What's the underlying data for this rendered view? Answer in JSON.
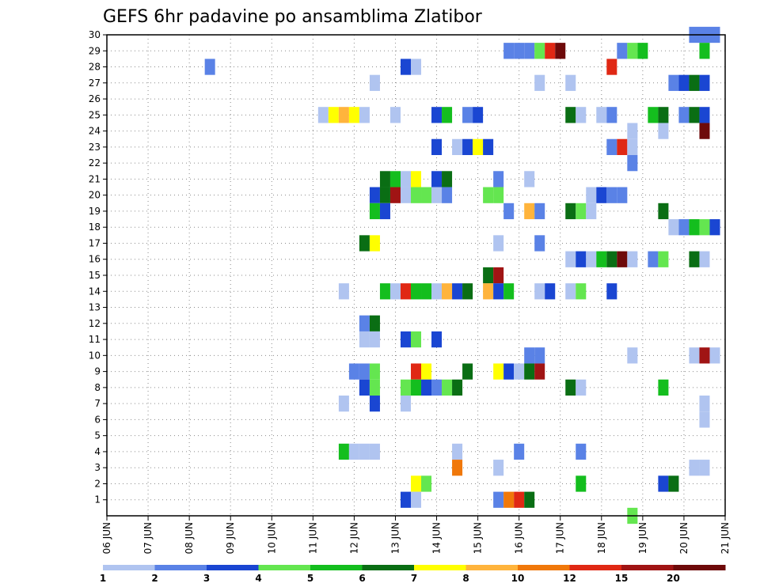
{
  "chart_data": {
    "type": "heatmap",
    "title": "GEFS 6hr padavine po ansamblima Zlatibor",
    "xlabel": "",
    "ylabel": "",
    "x_tick_labels": [
      "06 JUN",
      "07 JUN",
      "08 JUN",
      "09 JUN",
      "10 JUN",
      "11 JUN",
      "12 JUN",
      "13 JUN",
      "14 JUN",
      "15 JUN",
      "16 JUN",
      "17 JUN",
      "18 JUN",
      "19 JUN",
      "20 JUN",
      "21 JUN"
    ],
    "y_tick_labels": [
      "1",
      "2",
      "3",
      "4",
      "5",
      "6",
      "7",
      "8",
      "9",
      "10",
      "11",
      "12",
      "13",
      "14",
      "15",
      "16",
      "17",
      "18",
      "19",
      "20",
      "21",
      "22",
      "23",
      "24",
      "25",
      "26",
      "27",
      "28",
      "29",
      "30"
    ],
    "x_range_days": [
      0,
      15
    ],
    "y_range": [
      0,
      30
    ],
    "grid": "dotted",
    "legend": {
      "position": "bottom",
      "labels": [
        "1",
        "2",
        "3",
        "4",
        "5",
        "6",
        "7",
        "8",
        "10",
        "12",
        "15",
        "20"
      ],
      "colors": [
        "#b0c4f0",
        "#5a82e6",
        "#1a46d2",
        "#64e650",
        "#14be1e",
        "#0a6e14",
        "#ffff00",
        "#ffb43c",
        "#f0780a",
        "#e02814",
        "#a01414",
        "#6e0a0a"
      ]
    },
    "cells": [
      [
        30,
        14.25,
        3,
        2
      ],
      [
        29,
        9.75,
        1,
        2
      ],
      [
        29,
        10,
        1,
        2
      ],
      [
        29,
        10.25,
        1,
        2
      ],
      [
        29,
        10.5,
        1,
        4
      ],
      [
        29,
        10.75,
        1,
        10
      ],
      [
        29,
        11,
        1,
        12
      ],
      [
        29,
        12.5,
        1,
        2
      ],
      [
        29,
        12.75,
        1,
        4
      ],
      [
        29,
        13,
        1,
        5
      ],
      [
        29,
        14.5,
        1,
        5
      ],
      [
        28,
        2.5,
        1,
        2
      ],
      [
        28,
        7.25,
        1,
        3
      ],
      [
        28,
        7.5,
        1,
        1
      ],
      [
        28,
        12.25,
        1,
        10
      ],
      [
        27,
        6.5,
        1,
        1
      ],
      [
        27,
        10.5,
        1,
        1
      ],
      [
        27,
        11.25,
        1,
        1
      ],
      [
        27,
        13.75,
        1,
        2
      ],
      [
        27,
        14,
        1,
        3
      ],
      [
        27,
        14.25,
        1,
        6
      ],
      [
        27,
        14.5,
        1,
        3
      ],
      [
        25,
        5.25,
        1,
        1
      ],
      [
        25,
        5.5,
        1,
        7
      ],
      [
        25,
        5.75,
        1,
        8
      ],
      [
        25,
        6,
        1,
        7
      ],
      [
        25,
        6.25,
        1,
        1
      ],
      [
        25,
        7,
        1,
        1
      ],
      [
        25,
        8,
        1,
        3
      ],
      [
        25,
        8.25,
        1,
        5
      ],
      [
        25,
        8.75,
        1,
        2
      ],
      [
        25,
        9,
        1,
        3
      ],
      [
        25,
        11.25,
        1,
        6
      ],
      [
        25,
        11.5,
        1,
        1
      ],
      [
        25,
        12,
        1,
        1
      ],
      [
        25,
        12.25,
        1,
        2
      ],
      [
        25,
        13.25,
        1,
        5
      ],
      [
        25,
        13.5,
        1,
        6
      ],
      [
        25,
        14,
        1,
        2
      ],
      [
        25,
        14.25,
        1,
        6
      ],
      [
        25,
        14.5,
        1,
        3
      ],
      [
        24,
        12.75,
        1,
        1
      ],
      [
        24,
        13.5,
        1,
        1
      ],
      [
        24,
        14.5,
        1,
        12
      ],
      [
        23,
        8,
        1,
        3
      ],
      [
        23,
        8.5,
        1,
        1
      ],
      [
        23,
        8.75,
        1,
        3
      ],
      [
        23,
        9,
        1,
        7
      ],
      [
        23,
        9.25,
        1,
        3
      ],
      [
        23,
        12.25,
        1,
        2
      ],
      [
        23,
        12.5,
        1,
        10
      ],
      [
        23,
        12.75,
        1,
        1
      ],
      [
        22,
        12.75,
        1,
        2
      ],
      [
        21,
        6.75,
        1,
        6
      ],
      [
        21,
        7,
        1,
        5
      ],
      [
        21,
        7.25,
        1,
        1
      ],
      [
        21,
        7.5,
        1,
        7
      ],
      [
        21,
        8,
        1,
        3
      ],
      [
        21,
        8.25,
        1,
        6
      ],
      [
        21,
        9.5,
        1,
        2
      ],
      [
        21,
        10.25,
        1,
        1
      ],
      [
        20,
        6.5,
        1,
        3
      ],
      [
        20,
        6.75,
        1,
        6
      ],
      [
        20,
        7,
        1,
        11
      ],
      [
        20,
        7.25,
        1,
        1
      ],
      [
        20,
        7.5,
        1,
        4
      ],
      [
        20,
        7.75,
        1,
        4
      ],
      [
        20,
        8,
        1,
        1
      ],
      [
        20,
        8.25,
        1,
        2
      ],
      [
        20,
        9.25,
        1,
        4
      ],
      [
        20,
        9.5,
        1,
        4
      ],
      [
        20,
        11.75,
        1,
        1
      ],
      [
        20,
        12,
        1,
        3
      ],
      [
        20,
        12.25,
        1,
        2
      ],
      [
        20,
        12.5,
        1,
        2
      ],
      [
        19,
        6.5,
        1,
        5
      ],
      [
        19,
        6.75,
        1,
        3
      ],
      [
        19,
        9.75,
        1,
        2
      ],
      [
        19,
        10.25,
        1,
        8
      ],
      [
        19,
        10.5,
        1,
        2
      ],
      [
        19,
        11.25,
        1,
        6
      ],
      [
        19,
        11.5,
        1,
        4
      ],
      [
        19,
        11.75,
        1,
        1
      ],
      [
        19,
        13.5,
        1,
        6
      ],
      [
        18,
        13.75,
        1,
        1
      ],
      [
        18,
        14,
        1,
        2
      ],
      [
        18,
        14.25,
        1,
        5
      ],
      [
        18,
        14.5,
        1,
        4
      ],
      [
        18,
        14.75,
        1,
        3
      ],
      [
        17,
        6.25,
        1,
        6
      ],
      [
        17,
        6.5,
        1,
        7
      ],
      [
        17,
        9.5,
        1,
        1
      ],
      [
        17,
        10.5,
        1,
        2
      ],
      [
        16,
        11.25,
        1,
        1
      ],
      [
        16,
        11.5,
        1,
        3
      ],
      [
        16,
        11.75,
        1,
        1
      ],
      [
        16,
        12,
        1,
        5
      ],
      [
        16,
        12.25,
        1,
        6
      ],
      [
        16,
        12.5,
        1,
        12
      ],
      [
        16,
        12.75,
        1,
        1
      ],
      [
        16,
        13.25,
        1,
        2
      ],
      [
        16,
        13.5,
        1,
        4
      ],
      [
        16,
        14.25,
        1,
        6
      ],
      [
        16,
        14.5,
        1,
        1
      ],
      [
        15,
        9.25,
        1,
        6
      ],
      [
        15,
        9.5,
        1,
        11
      ],
      [
        14,
        5.75,
        1,
        1
      ],
      [
        14,
        6.75,
        1,
        5
      ],
      [
        14,
        7,
        1,
        1
      ],
      [
        14,
        7.25,
        1,
        10
      ],
      [
        14,
        7.5,
        1,
        5
      ],
      [
        14,
        7.75,
        1,
        5
      ],
      [
        14,
        8,
        1,
        1
      ],
      [
        14,
        8.25,
        1,
        8
      ],
      [
        14,
        8.5,
        1,
        3
      ],
      [
        14,
        8.75,
        1,
        6
      ],
      [
        14,
        9.25,
        1,
        8
      ],
      [
        14,
        9.5,
        1,
        3
      ],
      [
        14,
        9.75,
        1,
        5
      ],
      [
        14,
        10.5,
        1,
        1
      ],
      [
        14,
        10.75,
        1,
        3
      ],
      [
        14,
        11.25,
        1,
        1
      ],
      [
        14,
        11.5,
        1,
        4
      ],
      [
        14,
        12.25,
        1,
        3
      ],
      [
        12,
        6.25,
        1,
        2
      ],
      [
        12,
        6.5,
        1,
        6
      ],
      [
        11,
        6.25,
        1,
        1
      ],
      [
        11,
        6.5,
        1,
        1
      ],
      [
        11,
        7.25,
        1,
        3
      ],
      [
        11,
        7.5,
        1,
        4
      ],
      [
        11,
        8,
        1,
        3
      ],
      [
        10,
        10.25,
        1,
        2
      ],
      [
        10,
        10.5,
        1,
        2
      ],
      [
        10,
        12.75,
        1,
        1
      ],
      [
        10,
        14.25,
        1,
        1
      ],
      [
        10,
        14.5,
        1,
        11
      ],
      [
        10,
        14.75,
        1,
        1
      ],
      [
        9,
        6,
        1,
        2
      ],
      [
        9,
        6.25,
        1,
        2
      ],
      [
        9,
        6.5,
        1,
        4
      ],
      [
        9,
        7.5,
        1,
        10
      ],
      [
        9,
        7.75,
        1,
        7
      ],
      [
        9,
        8.75,
        1,
        6
      ],
      [
        9,
        9.5,
        1,
        7
      ],
      [
        9,
        9.75,
        1,
        3
      ],
      [
        9,
        10,
        1,
        1
      ],
      [
        9,
        10.25,
        1,
        6
      ],
      [
        9,
        10.5,
        1,
        11
      ],
      [
        8,
        6.25,
        1,
        3
      ],
      [
        8,
        6.5,
        1,
        4
      ],
      [
        8,
        7.25,
        1,
        4
      ],
      [
        8,
        7.5,
        1,
        5
      ],
      [
        8,
        7.75,
        1,
        3
      ],
      [
        8,
        8,
        1,
        2
      ],
      [
        8,
        8.25,
        1,
        4
      ],
      [
        8,
        8.5,
        1,
        6
      ],
      [
        8,
        11.25,
        1,
        6
      ],
      [
        8,
        11.5,
        1,
        1
      ],
      [
        8,
        13.5,
        1,
        5
      ],
      [
        7,
        5.75,
        1,
        1
      ],
      [
        7,
        6.5,
        1,
        3
      ],
      [
        7,
        7.25,
        1,
        1
      ],
      [
        7,
        14.5,
        1,
        1
      ],
      [
        6,
        14.5,
        1,
        1
      ],
      [
        4,
        5.75,
        1,
        5
      ],
      [
        4,
        6,
        1,
        1
      ],
      [
        4,
        6.25,
        1,
        1
      ],
      [
        4,
        6.5,
        1,
        1
      ],
      [
        4,
        8.5,
        1,
        1
      ],
      [
        4,
        10,
        1,
        2
      ],
      [
        4,
        11.5,
        1,
        2
      ],
      [
        3,
        8.5,
        1,
        9
      ],
      [
        3,
        9.5,
        1,
        1
      ],
      [
        3,
        14.25,
        1,
        1
      ],
      [
        3,
        14.5,
        1,
        1
      ],
      [
        2,
        7.5,
        1,
        7
      ],
      [
        2,
        7.75,
        1,
        4
      ],
      [
        2,
        11.5,
        1,
        5
      ],
      [
        2,
        13.5,
        1,
        3
      ],
      [
        2,
        13.75,
        1,
        6
      ],
      [
        1,
        7.25,
        1,
        3
      ],
      [
        1,
        7.5,
        1,
        1
      ],
      [
        1,
        9.5,
        1,
        2
      ],
      [
        1,
        9.75,
        1,
        9
      ],
      [
        1,
        10,
        1,
        10
      ],
      [
        1,
        10.25,
        1,
        6
      ],
      [
        0,
        12.75,
        1,
        4
      ]
    ]
  }
}
